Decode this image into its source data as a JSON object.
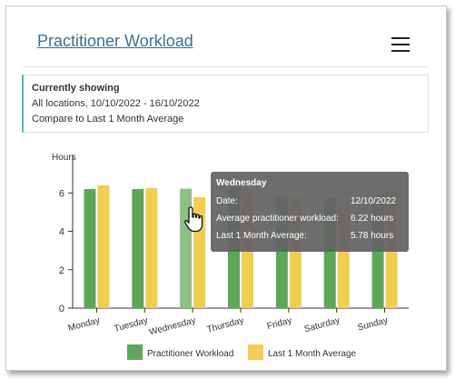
{
  "widget": {
    "title": "Practitioner Workload"
  },
  "info": {
    "heading": "Currently showing",
    "line1": "All locations, 10/10/2022 - 16/10/2022",
    "line2": "Compare to Last 1 Month Average"
  },
  "chart_data": {
    "type": "bar",
    "categories": [
      "Monday",
      "Tuesday",
      "Wednesday",
      "Thursday",
      "Friday",
      "Saturday",
      "Sunday"
    ],
    "series": [
      {
        "name": "Practitioner Workload",
        "values": [
          6.2,
          6.2,
          6.22,
          6.3,
          5.8,
          5.7,
          5.9
        ],
        "color": "#5fa55a"
      },
      {
        "name": "Last 1 Month Average",
        "values": [
          6.4,
          6.25,
          5.78,
          5.95,
          5.85,
          5.25,
          6.1
        ],
        "color": "#f2cd53"
      }
    ],
    "highlight_index": 2,
    "highlight_color": "#8cc186",
    "ylabel": "Hours",
    "ylim": [
      0,
      8
    ],
    "yticks": [
      0,
      2,
      4,
      6
    ],
    "grid": false,
    "legend": "bottom"
  },
  "tooltip": {
    "title": "Wednesday",
    "rows": [
      {
        "label": "Date:",
        "value": "12/10/2022"
      },
      {
        "label": "Average practitioner workload:",
        "value": "6.22 hours"
      },
      {
        "label": "Last 1 Month Average:",
        "value": "5.78 hours"
      }
    ]
  },
  "icons": {
    "menu": "hamburger-menu-icon",
    "cursor": "hand-pointer-icon"
  }
}
